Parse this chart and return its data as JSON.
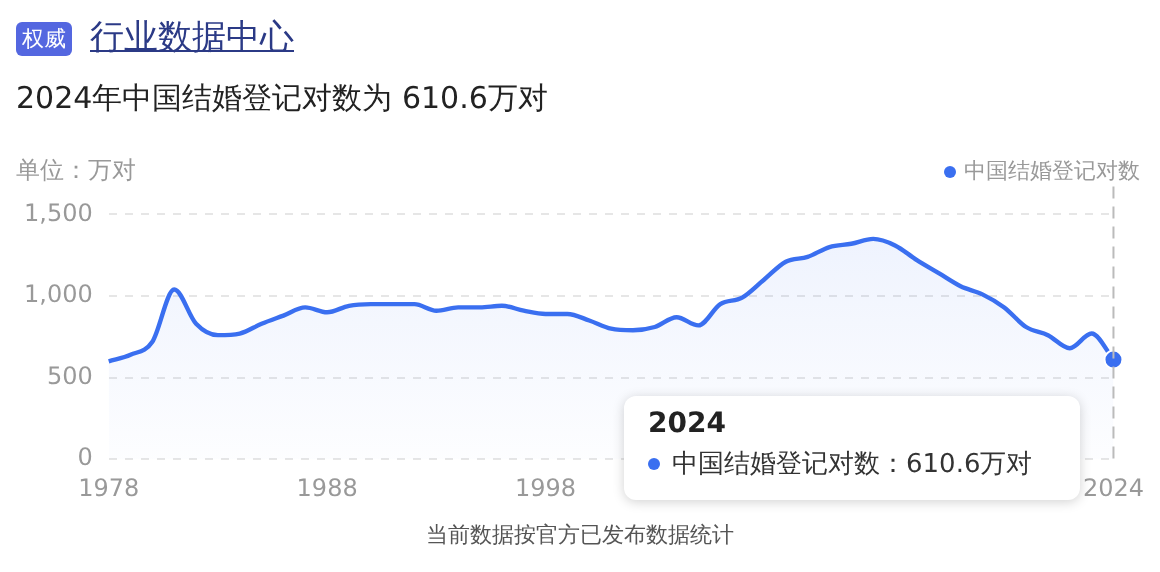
{
  "chart_data": {
    "type": "area",
    "title": "行业数据中心",
    "subtitle": "2024年中国结婚登记对数为 610.6万对",
    "ylabel": "单位：万对",
    "annotations": [
      "权威",
      "当前数据按官方已发布数据统计",
      "2024",
      "中国结婚登记对数：610.6万对"
    ],
    "categories": [
      "1978",
      null,
      null,
      null,
      null,
      null,
      null,
      null,
      null,
      null,
      "1988",
      null,
      null,
      null,
      null,
      null,
      null,
      null,
      null,
      null,
      "1998",
      null,
      null,
      null,
      null,
      null,
      null,
      null,
      null,
      null,
      null,
      null,
      null,
      null,
      null,
      null,
      null,
      null,
      null,
      null,
      null,
      null,
      null,
      null,
      null,
      null,
      "2024"
    ],
    "series": [
      {
        "name": "中国结婚登记对数",
        "color": "#3a6ff0",
        "values": [
          600,
          640,
          720,
          1040,
          830,
          760,
          770,
          830,
          880,
          930,
          900,
          940,
          950,
          950,
          950,
          910,
          930,
          930,
          940,
          910,
          890,
          890,
          850,
          800,
          790,
          810,
          870,
          820,
          950,
          990,
          1100,
          1210,
          1240,
          1300,
          1320,
          1350,
          1310,
          1220,
          1140,
          1060,
          1010,
          930,
          810,
          760,
          680,
          770,
          610.6
        ]
      }
    ],
    "ylim": [
      0,
      1500
    ],
    "yticks": [
      0,
      500,
      {
        "value": 1000,
        "label": "1,000"
      },
      {
        "value": 1500,
        "label": "1,500"
      }
    ],
    "ref_lines": [
      {
        "axis": "x",
        "value": "2024",
        "color": "#bbbbbb",
        "line_style": "dashed"
      }
    ],
    "grid": "y",
    "legend": "top right",
    "marker": "none",
    "line_style": "solid"
  }
}
